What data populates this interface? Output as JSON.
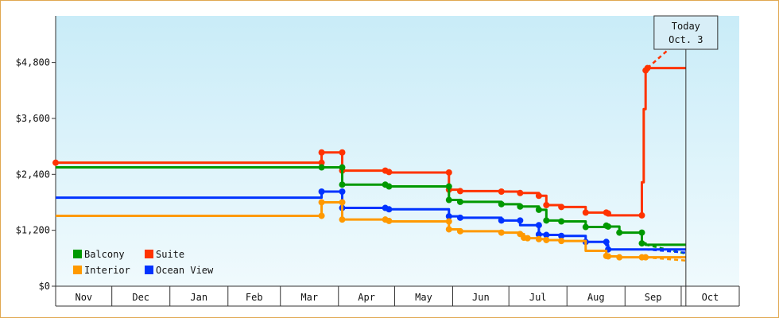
{
  "chart_data": {
    "type": "line",
    "step": true,
    "ylim": [
      0,
      5800
    ],
    "yticks": [
      0,
      1200,
      2400,
      3600,
      4800
    ],
    "ytick_labels": [
      "$0",
      "$1,200",
      "$2,400",
      "$3,600",
      "$4,800"
    ],
    "months": [
      "Nov",
      "Dec",
      "Jan",
      "Feb",
      "Mar",
      "Apr",
      "May",
      "Jun",
      "Jul",
      "Aug",
      "Sep",
      "Oct"
    ],
    "month_starts": [
      0,
      30,
      61,
      92,
      120,
      151,
      181,
      212,
      242,
      273,
      304,
      334
    ],
    "today": {
      "line1": "Today",
      "line2": "Oct. 3",
      "day": 336.5
    },
    "series": [
      {
        "name": "Suite",
        "color": "#ff3300",
        "points": [
          [
            0,
            2650
          ],
          [
            142,
            2650
          ],
          [
            142,
            2870
          ],
          [
            153,
            2870
          ],
          [
            153,
            2480
          ],
          [
            176,
            2480
          ],
          [
            176,
            2450
          ],
          [
            178,
            2450
          ],
          [
            178,
            2440
          ],
          [
            210,
            2440
          ],
          [
            210,
            2070
          ],
          [
            216,
            2070
          ],
          [
            216,
            2040
          ],
          [
            238,
            2040
          ],
          [
            238,
            2030
          ],
          [
            248,
            2030
          ],
          [
            248,
            2000
          ],
          [
            258,
            2000
          ],
          [
            258,
            1940
          ],
          [
            262,
            1940
          ],
          [
            262,
            1740
          ],
          [
            270,
            1740
          ],
          [
            270,
            1700
          ],
          [
            283,
            1700
          ],
          [
            283,
            1580
          ],
          [
            294,
            1580
          ],
          [
            294,
            1560
          ],
          [
            295,
            1560
          ],
          [
            295,
            1520
          ],
          [
            313,
            1520
          ],
          [
            313,
            2230
          ],
          [
            314,
            2230
          ],
          [
            314,
            3800
          ],
          [
            315,
            3800
          ],
          [
            315,
            4630
          ],
          [
            316,
            4630
          ],
          [
            316,
            4680
          ],
          [
            336.5,
            4680
          ]
        ],
        "forecast": [
          [
            316,
            4680
          ],
          [
            336.5,
            5410
          ]
        ],
        "dots": [
          [
            0,
            2650
          ],
          [
            142,
            2650
          ],
          [
            142,
            2870
          ],
          [
            153,
            2870
          ],
          [
            153,
            2480
          ],
          [
            176,
            2480
          ],
          [
            178,
            2450
          ],
          [
            210,
            2440
          ],
          [
            210,
            2070
          ],
          [
            216,
            2040
          ],
          [
            238,
            2030
          ],
          [
            248,
            2000
          ],
          [
            258,
            1940
          ],
          [
            262,
            1740
          ],
          [
            270,
            1700
          ],
          [
            283,
            1580
          ],
          [
            294,
            1580
          ],
          [
            295,
            1560
          ],
          [
            313,
            1520
          ],
          [
            315,
            4630
          ],
          [
            316,
            4680
          ]
        ]
      },
      {
        "name": "Balcony",
        "color": "#009900",
        "points": [
          [
            0,
            2550
          ],
          [
            142,
            2550
          ],
          [
            153,
            2550
          ],
          [
            153,
            2180
          ],
          [
            176,
            2180
          ],
          [
            176,
            2150
          ],
          [
            178,
            2150
          ],
          [
            178,
            2140
          ],
          [
            210,
            2140
          ],
          [
            210,
            1850
          ],
          [
            216,
            1850
          ],
          [
            216,
            1810
          ],
          [
            238,
            1810
          ],
          [
            238,
            1760
          ],
          [
            248,
            1760
          ],
          [
            248,
            1710
          ],
          [
            258,
            1710
          ],
          [
            258,
            1640
          ],
          [
            262,
            1640
          ],
          [
            262,
            1410
          ],
          [
            270,
            1410
          ],
          [
            270,
            1390
          ],
          [
            283,
            1390
          ],
          [
            283,
            1270
          ],
          [
            294,
            1270
          ],
          [
            294,
            1300
          ],
          [
            295,
            1300
          ],
          [
            295,
            1280
          ],
          [
            301,
            1280
          ],
          [
            301,
            1150
          ],
          [
            313,
            1150
          ],
          [
            313,
            920
          ],
          [
            315,
            920
          ],
          [
            315,
            890
          ],
          [
            336.5,
            890
          ]
        ],
        "forecast": [
          [
            315,
            890
          ],
          [
            336.5,
            700
          ]
        ],
        "dots": [
          [
            142,
            2550
          ],
          [
            153,
            2550
          ],
          [
            153,
            2180
          ],
          [
            176,
            2180
          ],
          [
            178,
            2140
          ],
          [
            210,
            2140
          ],
          [
            210,
            1850
          ],
          [
            216,
            1810
          ],
          [
            238,
            1760
          ],
          [
            248,
            1710
          ],
          [
            258,
            1640
          ],
          [
            262,
            1410
          ],
          [
            270,
            1390
          ],
          [
            283,
            1270
          ],
          [
            294,
            1300
          ],
          [
            295,
            1280
          ],
          [
            301,
            1150
          ],
          [
            313,
            1150
          ],
          [
            313,
            920
          ]
        ]
      },
      {
        "name": "Ocean View",
        "color": "#0033ff",
        "points": [
          [
            0,
            1900
          ],
          [
            142,
            1900
          ],
          [
            142,
            2030
          ],
          [
            153,
            2030
          ],
          [
            153,
            1680
          ],
          [
            176,
            1680
          ],
          [
            176,
            1660
          ],
          [
            178,
            1660
          ],
          [
            178,
            1650
          ],
          [
            210,
            1650
          ],
          [
            210,
            1500
          ],
          [
            216,
            1500
          ],
          [
            216,
            1470
          ],
          [
            238,
            1470
          ],
          [
            238,
            1410
          ],
          [
            248,
            1410
          ],
          [
            248,
            1310
          ],
          [
            258,
            1310
          ],
          [
            258,
            1110
          ],
          [
            262,
            1110
          ],
          [
            262,
            1100
          ],
          [
            270,
            1100
          ],
          [
            270,
            1080
          ],
          [
            283,
            1080
          ],
          [
            283,
            950
          ],
          [
            294,
            950
          ],
          [
            294,
            880
          ],
          [
            295,
            880
          ],
          [
            295,
            790
          ],
          [
            336.5,
            790
          ]
        ],
        "forecast": [
          [
            315,
            790
          ],
          [
            336.5,
            720
          ]
        ],
        "dots": [
          [
            142,
            2030
          ],
          [
            153,
            2030
          ],
          [
            153,
            1680
          ],
          [
            176,
            1680
          ],
          [
            178,
            1650
          ],
          [
            210,
            1500
          ],
          [
            216,
            1470
          ],
          [
            238,
            1410
          ],
          [
            248,
            1410
          ],
          [
            258,
            1310
          ],
          [
            258,
            1110
          ],
          [
            262,
            1100
          ],
          [
            270,
            1080
          ],
          [
            283,
            950
          ],
          [
            294,
            950
          ],
          [
            295,
            790
          ]
        ]
      },
      {
        "name": "Interior",
        "color": "#ff9900",
        "points": [
          [
            0,
            1510
          ],
          [
            142,
            1510
          ],
          [
            142,
            1800
          ],
          [
            153,
            1800
          ],
          [
            153,
            1430
          ],
          [
            176,
            1430
          ],
          [
            176,
            1400
          ],
          [
            178,
            1400
          ],
          [
            178,
            1390
          ],
          [
            210,
            1390
          ],
          [
            210,
            1220
          ],
          [
            216,
            1220
          ],
          [
            216,
            1180
          ],
          [
            238,
            1180
          ],
          [
            238,
            1150
          ],
          [
            248,
            1150
          ],
          [
            248,
            1120
          ],
          [
            250,
            1120
          ],
          [
            250,
            1040
          ],
          [
            252,
            1040
          ],
          [
            252,
            1030
          ],
          [
            258,
            1030
          ],
          [
            258,
            1010
          ],
          [
            262,
            1010
          ],
          [
            262,
            990
          ],
          [
            270,
            990
          ],
          [
            270,
            970
          ],
          [
            283,
            970
          ],
          [
            283,
            760
          ],
          [
            294,
            760
          ],
          [
            294,
            650
          ],
          [
            295,
            650
          ],
          [
            295,
            640
          ],
          [
            301,
            640
          ],
          [
            301,
            620
          ],
          [
            336.5,
            620
          ]
        ],
        "forecast": [
          [
            315,
            620
          ],
          [
            336.5,
            550
          ]
        ],
        "dots": [
          [
            142,
            1510
          ],
          [
            142,
            1800
          ],
          [
            153,
            1800
          ],
          [
            153,
            1430
          ],
          [
            176,
            1430
          ],
          [
            178,
            1400
          ],
          [
            210,
            1390
          ],
          [
            210,
            1220
          ],
          [
            216,
            1180
          ],
          [
            238,
            1150
          ],
          [
            248,
            1120
          ],
          [
            250,
            1040
          ],
          [
            252,
            1030
          ],
          [
            258,
            1010
          ],
          [
            262,
            990
          ],
          [
            270,
            970
          ],
          [
            294,
            650
          ],
          [
            295,
            640
          ],
          [
            301,
            620
          ],
          [
            313,
            620
          ],
          [
            315,
            620
          ]
        ]
      }
    ],
    "legend": [
      {
        "label": "Balcony",
        "color": "#009900"
      },
      {
        "label": "Suite",
        "color": "#ff3300"
      },
      {
        "label": "Interior",
        "color": "#ff9900"
      },
      {
        "label": "Ocean View",
        "color": "#0033ff"
      }
    ],
    "grid": false,
    "legend_position": "bottom-left"
  }
}
